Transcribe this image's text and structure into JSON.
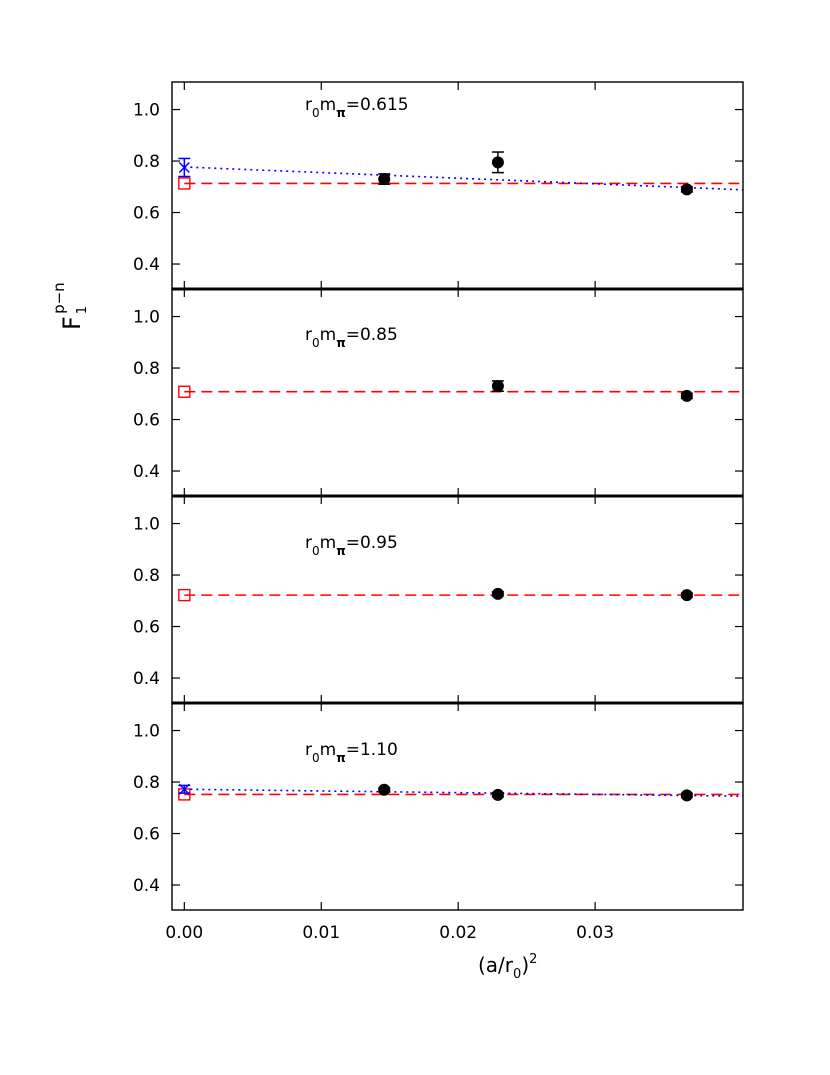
{
  "chart_data": [
    {
      "type": "scatter",
      "annotation": [
        "r",
        "0",
        "m",
        "π",
        "=0.615"
      ],
      "ylabel": [
        "F",
        "1",
        "p−n"
      ],
      "xlim": [
        -0.0009,
        0.0408
      ],
      "ylim": [
        0.303,
        1.107
      ],
      "yticks": [
        {
          "value": 0.4,
          "label": "0.4"
        },
        {
          "value": 0.6,
          "label": "0.6"
        },
        {
          "value": 0.8,
          "label": "0.8"
        },
        {
          "value": 1,
          "label": "1.0"
        }
      ],
      "series": [
        {
          "marker": "line",
          "dash": "dashed",
          "color": "#ff0000",
          "x": [
            0,
            0.0408
          ],
          "values": [
            0.713,
            0.713
          ]
        },
        {
          "marker": "line",
          "dash": "dotted",
          "color": "#0000ff",
          "x": [
            0,
            0.0408
          ],
          "values": [
            0.777,
            0.688
          ]
        },
        {
          "marker": "square",
          "color": "#ff0000",
          "x": [
            0
          ],
          "values": [
            0.713
          ]
        },
        {
          "marker": "x",
          "color": "#0000ff",
          "x": [
            0
          ],
          "values": [
            0.775
          ],
          "errors": [
            0.035
          ]
        },
        {
          "marker": "circle",
          "color": "#000000",
          "x": [
            0.0146,
            0.0229,
            0.0367
          ],
          "values": [
            0.73,
            0.795,
            0.69
          ],
          "errors": [
            0.02,
            0.04,
            0.01
          ]
        }
      ]
    },
    {
      "type": "scatter",
      "annotation": [
        "r",
        "0",
        "m",
        "π",
        "=0.85"
      ],
      "xlim": [
        -0.0009,
        0.0408
      ],
      "ylim": [
        0.303,
        1.107
      ],
      "yticks": [
        {
          "value": 0.4,
          "label": "0.4"
        },
        {
          "value": 0.6,
          "label": "0.6"
        },
        {
          "value": 0.8,
          "label": "0.8"
        },
        {
          "value": 1,
          "label": "1.0"
        }
      ],
      "series": [
        {
          "marker": "line",
          "dash": "dashed",
          "color": "#ff0000",
          "x": [
            0,
            0.0408
          ],
          "values": [
            0.708,
            0.708
          ]
        },
        {
          "marker": "square",
          "color": "#ff0000",
          "x": [
            0
          ],
          "values": [
            0.708
          ]
        },
        {
          "marker": "circle",
          "color": "#000000",
          "x": [
            0.0229,
            0.0367
          ],
          "values": [
            0.73,
            0.692
          ],
          "errors": [
            0.02,
            0.01
          ]
        }
      ]
    },
    {
      "type": "scatter",
      "annotation": [
        "r",
        "0",
        "m",
        "π",
        "=0.95"
      ],
      "xlim": [
        -0.0009,
        0.0408
      ],
      "ylim": [
        0.303,
        1.107
      ],
      "yticks": [
        {
          "value": 0.4,
          "label": "0.4"
        },
        {
          "value": 0.6,
          "label": "0.6"
        },
        {
          "value": 0.8,
          "label": "0.8"
        },
        {
          "value": 1,
          "label": "1.0"
        }
      ],
      "series": [
        {
          "marker": "line",
          "dash": "dashed",
          "color": "#ff0000",
          "x": [
            0,
            0.0408
          ],
          "values": [
            0.722,
            0.722
          ]
        },
        {
          "marker": "square",
          "color": "#ff0000",
          "x": [
            0
          ],
          "values": [
            0.722
          ]
        },
        {
          "marker": "circle",
          "color": "#000000",
          "x": [
            0.0229,
            0.0367
          ],
          "values": [
            0.727,
            0.722
          ],
          "errors": [
            0.008,
            0.008
          ]
        }
      ]
    },
    {
      "type": "scatter",
      "annotation": [
        "r",
        "0",
        "m",
        "π",
        "=1.10"
      ],
      "xlabel": [
        "(a/r",
        "0",
        ")",
        "2"
      ],
      "xlim": [
        -0.0009,
        0.0408
      ],
      "ylim": [
        0.303,
        1.107
      ],
      "xticks": [
        {
          "value": 0,
          "label": "0.00"
        },
        {
          "value": 0.01,
          "label": "0.01"
        },
        {
          "value": 0.02,
          "label": "0.02"
        },
        {
          "value": 0.03,
          "label": "0.03"
        }
      ],
      "yticks": [
        {
          "value": 0.4,
          "label": "0.4"
        },
        {
          "value": 0.6,
          "label": "0.6"
        },
        {
          "value": 0.8,
          "label": "0.8"
        },
        {
          "value": 1,
          "label": "1.0"
        }
      ],
      "series": [
        {
          "marker": "line",
          "dash": "dashed",
          "color": "#ff0000",
          "x": [
            0,
            0.0408
          ],
          "values": [
            0.752,
            0.752
          ]
        },
        {
          "marker": "line",
          "dash": "dotted",
          "color": "#0000ff",
          "x": [
            0,
            0.0408
          ],
          "values": [
            0.772,
            0.745
          ]
        },
        {
          "marker": "square",
          "color": "#ff0000",
          "x": [
            0
          ],
          "values": [
            0.752
          ]
        },
        {
          "marker": "x",
          "color": "#0000ff",
          "x": [
            0
          ],
          "values": [
            0.772
          ],
          "errors": [
            0.015
          ]
        },
        {
          "marker": "circle",
          "color": "#000000",
          "x": [
            0.0146,
            0.0229,
            0.0367
          ],
          "values": [
            0.77,
            0.75,
            0.748
          ],
          "errors": [
            0.008,
            0.008,
            0.008
          ]
        }
      ]
    }
  ]
}
